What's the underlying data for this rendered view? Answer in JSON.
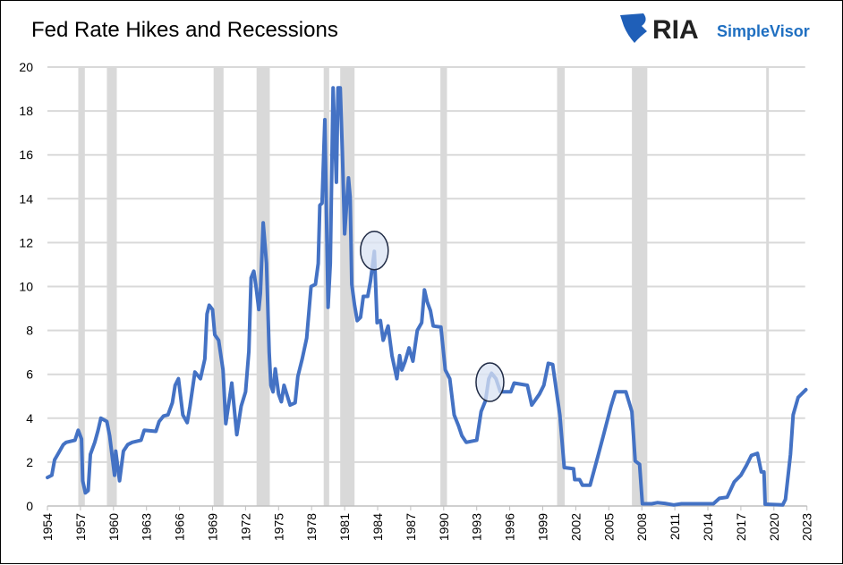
{
  "chart_data": {
    "type": "line",
    "title": "Fed Rate Hikes and Recessions",
    "xlabel": "",
    "ylabel": "",
    "xlim": [
      1954,
      2023
    ],
    "ylim": [
      0,
      20
    ],
    "x_ticks": [
      1954,
      1957,
      1960,
      1963,
      1966,
      1969,
      1972,
      1975,
      1978,
      1981,
      1984,
      1987,
      1990,
      1993,
      1996,
      1999,
      2002,
      2005,
      2008,
      2011,
      2014,
      2017,
      2020,
      2023
    ],
    "y_ticks": [
      0,
      2,
      4,
      6,
      8,
      10,
      12,
      14,
      16,
      18,
      20
    ],
    "grid": "horizontal",
    "legend": "none",
    "colors": {
      "line": "#4472c4",
      "recession": "#d9d9d9",
      "grid": "#d9d9d9",
      "circle_fill": "#dae3f3",
      "circle_stroke": "#1f2a44"
    },
    "recessions": [
      [
        1956.8,
        1957.4
      ],
      [
        1959.4,
        1960.3
      ],
      [
        1969.1,
        1970.0
      ],
      [
        1973.0,
        1974.2
      ],
      [
        1979.1,
        1979.6
      ],
      [
        1980.6,
        1981.9
      ],
      [
        1989.7,
        1990.3
      ],
      [
        2000.3,
        2001.0
      ],
      [
        2007.1,
        2008.5
      ],
      [
        2019.3,
        2019.45
      ]
    ],
    "annotations": [
      {
        "type": "circle",
        "x": 1983.7,
        "y": 11.6
      },
      {
        "type": "circle",
        "x": 1994.2,
        "y": 5.6
      }
    ],
    "series": [
      {
        "points": [
          [
            1954.0,
            1.3
          ],
          [
            1954.4,
            1.4
          ],
          [
            1954.65,
            2.1
          ],
          [
            1955.05,
            2.45
          ],
          [
            1955.45,
            2.8
          ],
          [
            1955.7,
            2.9
          ],
          [
            1956.5,
            3.0
          ],
          [
            1956.8,
            3.45
          ],
          [
            1957.1,
            3.05
          ],
          [
            1957.2,
            1.15
          ],
          [
            1957.45,
            0.6
          ],
          [
            1957.7,
            0.7
          ],
          [
            1957.9,
            2.35
          ],
          [
            1958.3,
            2.9
          ],
          [
            1958.6,
            3.45
          ],
          [
            1958.85,
            4.0
          ],
          [
            1959.4,
            3.85
          ],
          [
            1959.65,
            3.2
          ],
          [
            1960.1,
            1.4
          ],
          [
            1960.2,
            2.5
          ],
          [
            1960.55,
            1.15
          ],
          [
            1960.9,
            2.5
          ],
          [
            1961.3,
            2.8
          ],
          [
            1961.7,
            2.9
          ],
          [
            1962.5,
            3.0
          ],
          [
            1962.8,
            3.45
          ],
          [
            1963.85,
            3.4
          ],
          [
            1964.15,
            3.85
          ],
          [
            1964.55,
            4.1
          ],
          [
            1964.95,
            4.15
          ],
          [
            1965.35,
            4.7
          ],
          [
            1965.6,
            5.5
          ],
          [
            1965.9,
            5.8
          ],
          [
            1966.3,
            4.15
          ],
          [
            1966.7,
            3.8
          ],
          [
            1966.95,
            4.55
          ],
          [
            1967.4,
            6.1
          ],
          [
            1967.9,
            5.8
          ],
          [
            1968.3,
            6.7
          ],
          [
            1968.5,
            8.75
          ],
          [
            1968.7,
            9.15
          ],
          [
            1969.0,
            8.95
          ],
          [
            1969.2,
            7.8
          ],
          [
            1969.55,
            7.55
          ],
          [
            1969.95,
            6.2
          ],
          [
            1970.2,
            3.75
          ],
          [
            1970.75,
            5.6
          ],
          [
            1971.2,
            3.25
          ],
          [
            1971.6,
            4.55
          ],
          [
            1972.0,
            5.2
          ],
          [
            1972.3,
            7.05
          ],
          [
            1972.5,
            10.4
          ],
          [
            1972.75,
            10.7
          ],
          [
            1972.95,
            10.0
          ],
          [
            1973.2,
            8.95
          ],
          [
            1973.35,
            9.7
          ],
          [
            1973.6,
            12.9
          ],
          [
            1973.9,
            11.05
          ],
          [
            1974.15,
            7.0
          ],
          [
            1974.3,
            5.5
          ],
          [
            1974.5,
            5.2
          ],
          [
            1974.7,
            6.25
          ],
          [
            1975.0,
            5.1
          ],
          [
            1975.25,
            4.75
          ],
          [
            1975.5,
            5.5
          ],
          [
            1976.05,
            4.6
          ],
          [
            1976.5,
            4.7
          ],
          [
            1976.75,
            5.9
          ],
          [
            1977.15,
            6.7
          ],
          [
            1977.55,
            7.65
          ],
          [
            1977.95,
            10.0
          ],
          [
            1978.35,
            10.1
          ],
          [
            1978.6,
            11.05
          ],
          [
            1978.75,
            13.7
          ],
          [
            1978.95,
            13.8
          ],
          [
            1979.2,
            17.6
          ],
          [
            1979.5,
            9.05
          ],
          [
            1979.7,
            11.05
          ],
          [
            1979.95,
            19.05
          ],
          [
            1980.25,
            14.75
          ],
          [
            1980.4,
            19.05
          ],
          [
            1980.6,
            19.05
          ],
          [
            1980.8,
            16.1
          ],
          [
            1981.0,
            12.4
          ],
          [
            1981.35,
            14.95
          ],
          [
            1981.5,
            14.05
          ],
          [
            1981.65,
            10.1
          ],
          [
            1981.9,
            9.15
          ],
          [
            1982.15,
            8.45
          ],
          [
            1982.45,
            8.6
          ],
          [
            1982.7,
            9.55
          ],
          [
            1983.1,
            9.55
          ],
          [
            1983.35,
            10.25
          ],
          [
            1983.7,
            11.6
          ],
          [
            1983.95,
            8.35
          ],
          [
            1984.25,
            8.45
          ],
          [
            1984.5,
            7.55
          ],
          [
            1984.95,
            8.2
          ],
          [
            1985.3,
            6.85
          ],
          [
            1985.75,
            5.8
          ],
          [
            1986.0,
            6.85
          ],
          [
            1986.2,
            6.2
          ],
          [
            1986.5,
            6.6
          ],
          [
            1986.85,
            7.2
          ],
          [
            1987.2,
            6.6
          ],
          [
            1987.6,
            8.0
          ],
          [
            1988.0,
            8.35
          ],
          [
            1988.25,
            9.85
          ],
          [
            1988.5,
            9.3
          ],
          [
            1988.8,
            8.9
          ],
          [
            1989.05,
            8.2
          ],
          [
            1989.75,
            8.15
          ],
          [
            1990.15,
            6.2
          ],
          [
            1990.55,
            5.8
          ],
          [
            1990.95,
            4.15
          ],
          [
            1991.35,
            3.65
          ],
          [
            1991.65,
            3.2
          ],
          [
            1992.05,
            2.9
          ],
          [
            1993.0,
            3.0
          ],
          [
            1993.4,
            4.3
          ],
          [
            1993.8,
            4.8
          ],
          [
            1994.1,
            5.8
          ],
          [
            1994.35,
            6.05
          ],
          [
            1994.75,
            5.8
          ],
          [
            1995.15,
            5.2
          ],
          [
            1996.1,
            5.2
          ],
          [
            1996.4,
            5.6
          ],
          [
            1997.6,
            5.5
          ],
          [
            1998.0,
            4.6
          ],
          [
            1998.7,
            5.1
          ],
          [
            1999.1,
            5.5
          ],
          [
            1999.5,
            6.5
          ],
          [
            1999.9,
            6.45
          ],
          [
            2000.25,
            5.2
          ],
          [
            2000.55,
            4.15
          ],
          [
            2000.95,
            1.75
          ],
          [
            2001.8,
            1.7
          ],
          [
            2001.9,
            1.2
          ],
          [
            2002.35,
            1.2
          ],
          [
            2002.6,
            0.95
          ],
          [
            2003.3,
            0.95
          ],
          [
            2004.0,
            2.25
          ],
          [
            2004.5,
            3.2
          ],
          [
            2005.2,
            4.55
          ],
          [
            2005.6,
            5.2
          ],
          [
            2006.55,
            5.2
          ],
          [
            2007.1,
            4.3
          ],
          [
            2007.4,
            2.05
          ],
          [
            2007.8,
            1.9
          ],
          [
            2008.05,
            0.1
          ],
          [
            2008.9,
            0.1
          ],
          [
            2009.4,
            0.15
          ],
          [
            2010.1,
            0.12
          ],
          [
            2010.9,
            0.05
          ],
          [
            2011.6,
            0.1
          ],
          [
            2014.5,
            0.1
          ],
          [
            2015.05,
            0.35
          ],
          [
            2015.75,
            0.4
          ],
          [
            2016.4,
            1.1
          ],
          [
            2017.0,
            1.4
          ],
          [
            2017.5,
            1.85
          ],
          [
            2017.95,
            2.3
          ],
          [
            2018.5,
            2.4
          ],
          [
            2018.85,
            1.55
          ],
          [
            2019.1,
            1.55
          ],
          [
            2019.2,
            0.08
          ],
          [
            2020.8,
            0.05
          ],
          [
            2021.05,
            0.3
          ],
          [
            2021.5,
            2.35
          ],
          [
            2021.75,
            4.15
          ],
          [
            2022.2,
            4.95
          ],
          [
            2022.9,
            5.3
          ]
        ]
      }
    ]
  },
  "logo": {
    "brand": "RIA",
    "product": "SimpleVisor"
  }
}
